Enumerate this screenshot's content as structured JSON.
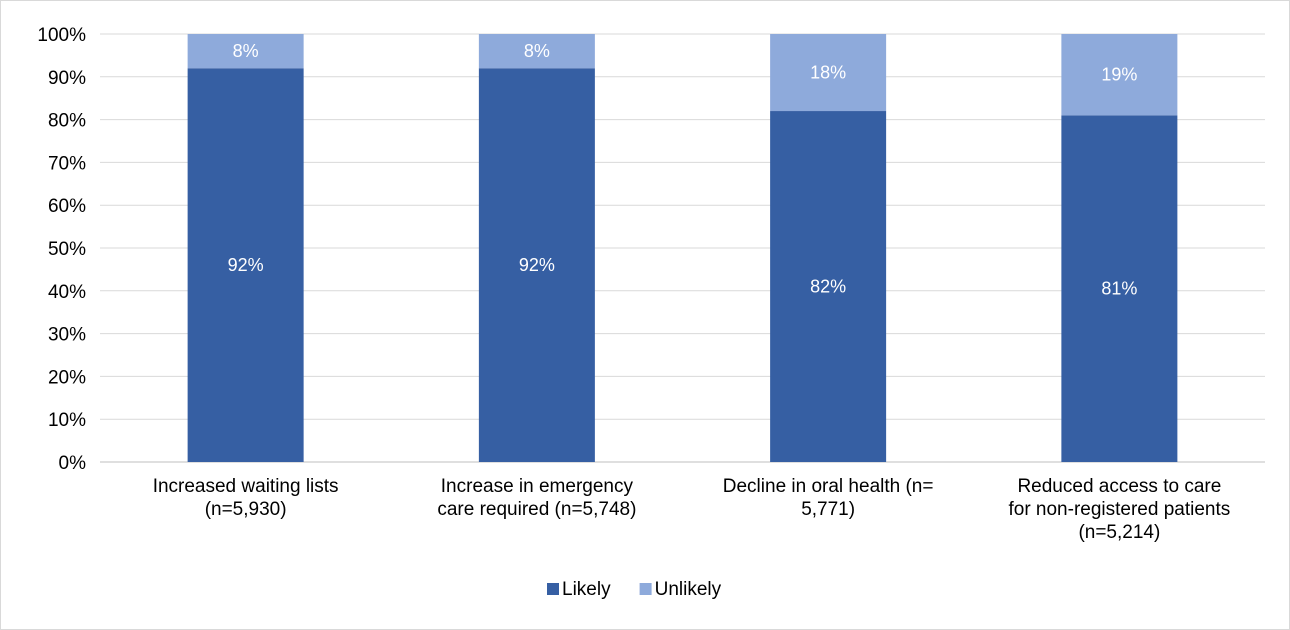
{
  "chart_data": {
    "type": "bar",
    "stacked": true,
    "title": "",
    "xlabel": "",
    "ylabel": "",
    "ylim": [
      0,
      100
    ],
    "yticks": [
      "0%",
      "10%",
      "20%",
      "30%",
      "40%",
      "50%",
      "60%",
      "70%",
      "80%",
      "90%",
      "100%"
    ],
    "grid": true,
    "legend_position": "bottom",
    "categories": [
      [
        "Increased waiting lists",
        "(n=5,930)"
      ],
      [
        "Increase in emergency",
        "care required (n=5,748)"
      ],
      [
        "Decline in oral health (n=",
        "5,771)"
      ],
      [
        "Reduced access to care",
        "for non-registered patients",
        "(n=5,214)"
      ]
    ],
    "series": [
      {
        "name": "Likely",
        "color": "#365fa3",
        "values": [
          92,
          92,
          82,
          81
        ],
        "labels": [
          "92%",
          "92%",
          "82%",
          "81%"
        ]
      },
      {
        "name": "Unlikely",
        "color": "#8eaadb",
        "values": [
          8,
          8,
          18,
          19
        ],
        "labels": [
          "8%",
          "8%",
          "18%",
          "19%"
        ]
      }
    ]
  }
}
